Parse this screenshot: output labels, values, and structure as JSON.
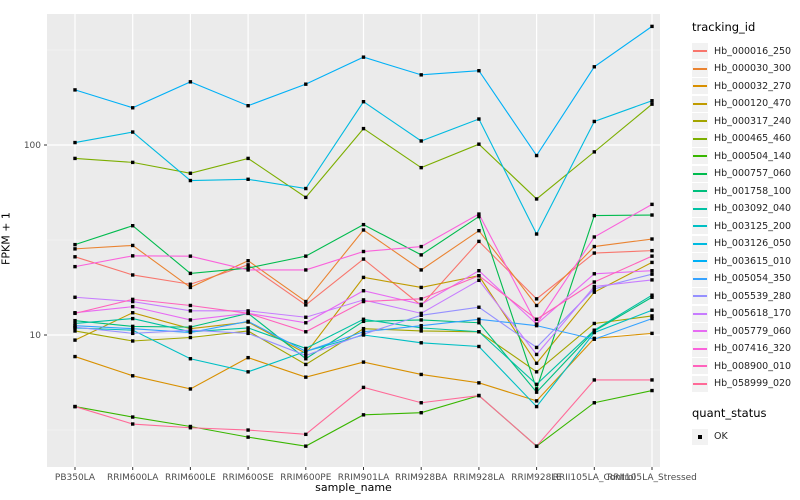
{
  "figure": {
    "y_axis_title": "FPKM + 1",
    "x_axis_title": "sample_name",
    "legend": {
      "tracking_title": "tracking_id",
      "quant_title": "quant_status",
      "quant_items": [
        {
          "label": "OK",
          "marker": "black-filled-square"
        }
      ]
    },
    "panel_bg": "#EBEBEB",
    "grid_color": "#FFFFFF",
    "tick_label_color": "#4D4D4D",
    "point_color": "#000000"
  },
  "chart_data": {
    "type": "line",
    "title": "",
    "xlabel": "sample_name",
    "ylabel": "FPKM + 1",
    "y_scale": "log10",
    "ylim": [
      2.0,
      490
    ],
    "y_major_ticks": [
      100,
      10
    ],
    "y_minor_ticks": [
      316.2,
      31.62,
      3.162
    ],
    "grid": true,
    "legend_position": "right",
    "point_shape": "filled-square-black (quant_status OK)",
    "x": [
      "PB350LA",
      "RRIM600LA",
      "RRIM600LE",
      "RRIM600SE",
      "RRIM600PE",
      "RRIM901LA",
      "RRIM928BA",
      "RRIM928LA",
      "RRIM928LE",
      "RRII105LA_Control",
      "RRII105LA_Stressed"
    ],
    "series": [
      {
        "name": "Hb_000016_250",
        "color": "#F8766D",
        "values": [
          25.8,
          20.7,
          18.5,
          23.4,
          14.4,
          25.1,
          14.3,
          31.1,
          15.5,
          27.0,
          27.8
        ]
      },
      {
        "name": "Hb_000030_300",
        "color": "#EA8331",
        "values": [
          28.4,
          29.6,
          17.8,
          24.6,
          15.0,
          35.7,
          22.0,
          35.4,
          14.3,
          29.2,
          32.0
        ]
      },
      {
        "name": "Hb_000032_270",
        "color": "#D89000",
        "values": [
          7.7,
          6.1,
          5.2,
          7.6,
          6.0,
          7.2,
          6.2,
          5.6,
          4.5,
          9.6,
          10.2
        ]
      },
      {
        "name": "Hb_000120_470",
        "color": "#C09B00",
        "values": [
          9.4,
          13.1,
          10.8,
          11.7,
          8.0,
          20.1,
          17.8,
          20.5,
          7.1,
          16.8,
          24.1
        ]
      },
      {
        "name": "Hb_000317_240",
        "color": "#A3A500",
        "values": [
          10.5,
          9.3,
          9.7,
          10.5,
          7.0,
          10.8,
          10.5,
          10.4,
          6.4,
          11.5,
          12.6
        ]
      },
      {
        "name": "Hb_000465_460",
        "color": "#7CAE00",
        "values": [
          85,
          81,
          71,
          85,
          53,
          122,
          76,
          101,
          52,
          92,
          164
        ]
      },
      {
        "name": "Hb_000504_140",
        "color": "#39B600",
        "values": [
          4.2,
          3.7,
          3.3,
          2.9,
          2.6,
          3.8,
          3.9,
          4.8,
          2.6,
          4.4,
          5.1
        ]
      },
      {
        "name": "Hb_000757_060",
        "color": "#00BB4E",
        "values": [
          29.9,
          37.6,
          21.1,
          22.5,
          26.0,
          38.1,
          26.4,
          42.0,
          5.2,
          42.5,
          42.8
        ]
      },
      {
        "name": "Hb_001758_100",
        "color": "#00BF7D",
        "values": [
          11.9,
          11.1,
          11.0,
          13.0,
          7.5,
          11.8,
          12.0,
          11.6,
          5.0,
          10.5,
          15.8
        ]
      },
      {
        "name": "Hb_003092_040",
        "color": "#00C1A3",
        "values": [
          11.5,
          12.2,
          10.4,
          10.9,
          8.5,
          12.1,
          10.9,
          10.4,
          5.5,
          10.6,
          16.2
        ]
      },
      {
        "name": "Hb_003125_200",
        "color": "#00BFC4",
        "values": [
          10.9,
          10.6,
          7.5,
          6.4,
          8.2,
          10.0,
          9.1,
          8.7,
          4.2,
          10.3,
          13.5
        ]
      },
      {
        "name": "Hb_003126_050",
        "color": "#00BAE0",
        "values": [
          103,
          117,
          65,
          66,
          59,
          169,
          105,
          137,
          34,
          133,
          171
        ]
      },
      {
        "name": "Hb_003615_010",
        "color": "#00B0F6",
        "values": [
          195,
          157,
          215,
          161,
          209,
          290,
          234,
          246,
          88,
          258,
          421
        ]
      },
      {
        "name": "Hb_005054_350",
        "color": "#35A2FF",
        "values": [
          11.2,
          10.8,
          10.3,
          11.8,
          8.2,
          10.4,
          11.2,
          12.1,
          11.2,
          9.5,
          12.2
        ]
      },
      {
        "name": "Hb_005539_280",
        "color": "#9590FF",
        "values": [
          11.0,
          10.2,
          10.6,
          10.2,
          7.8,
          10.1,
          12.7,
          14.0,
          8.6,
          17.5,
          20.9
        ]
      },
      {
        "name": "Hb_005618_170",
        "color": "#C77CFF",
        "values": [
          15.8,
          15.0,
          13.4,
          13.4,
          12.4,
          15.3,
          13.0,
          19.4,
          7.9,
          18.0,
          19.5
        ]
      },
      {
        "name": "Hb_005779_060",
        "color": "#E76BF3",
        "values": [
          13.1,
          14.1,
          12.0,
          13.0,
          11.6,
          17.1,
          14.5,
          21.8,
          11.4,
          21.0,
          21.8
        ]
      },
      {
        "name": "Hb_007416_320",
        "color": "#FA62DB",
        "values": [
          22.9,
          26.1,
          26.0,
          22.0,
          22.0,
          27.5,
          29.2,
          43.3,
          11.4,
          32.8,
          48.7
        ]
      },
      {
        "name": "Hb_008900_010",
        "color": "#FF62BC",
        "values": [
          13.0,
          15.4,
          14.3,
          13.0,
          10.4,
          15.0,
          15.5,
          20.5,
          12.1,
          19.0,
          26.0
        ]
      },
      {
        "name": "Hb_058999_020",
        "color": "#FF6A98",
        "values": [
          4.2,
          3.4,
          3.25,
          3.16,
          3.0,
          5.3,
          4.4,
          4.8,
          2.6,
          5.8,
          5.8
        ]
      }
    ]
  }
}
